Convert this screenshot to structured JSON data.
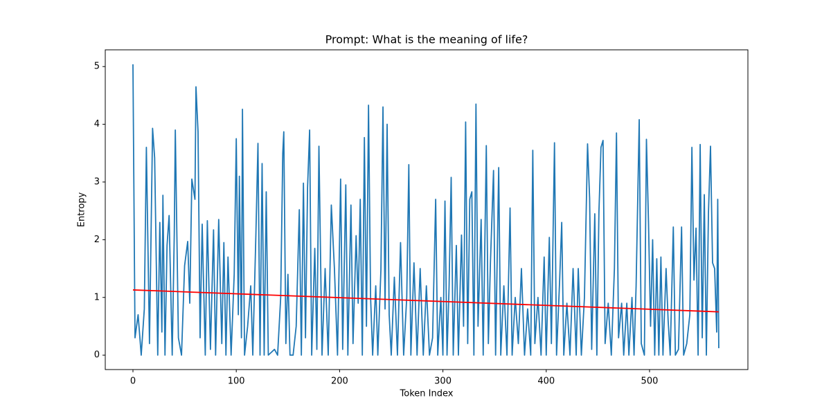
{
  "chart_data": {
    "type": "line",
    "title": "Prompt: What is the meaning of life?",
    "x_label": "Token Index",
    "y_label": "Entropy",
    "xlim": [
      -26.8,
      595.2
    ],
    "ylim": [
      -0.25,
      5.29
    ],
    "xticks": [
      0,
      100,
      200,
      300,
      400,
      500
    ],
    "yticks": [
      0,
      1,
      2,
      3,
      4,
      5
    ],
    "grid": false,
    "series": [
      {
        "color": "#1f77b4",
        "x": [
          0,
          2,
          5,
          8,
          11,
          13,
          16,
          19,
          21,
          24,
          26,
          28,
          29,
          31,
          33,
          35,
          38,
          40,
          41,
          44,
          47,
          50,
          53,
          55,
          57,
          60,
          61,
          63,
          65,
          67,
          70,
          72,
          75,
          78,
          80,
          83,
          86,
          88,
          90,
          92,
          95,
          98,
          100,
          102,
          103,
          105,
          106,
          108,
          111,
          114,
          116,
          119,
          121,
          123,
          125,
          127,
          129,
          131,
          134,
          137,
          140,
          143,
          145,
          146,
          148,
          150,
          152,
          155,
          158,
          161,
          163,
          165,
          167,
          169,
          171,
          173,
          176,
          178,
          180,
          183,
          186,
          189,
          192,
          195,
          198,
          201,
          203,
          206,
          208,
          211,
          213,
          216,
          218,
          220,
          222,
          224,
          226,
          228,
          230,
          232,
          235,
          237,
          240,
          242,
          244,
          246,
          248,
          250,
          253,
          256,
          259,
          262,
          265,
          267,
          269,
          272,
          275,
          278,
          281,
          284,
          287,
          290,
          293,
          295,
          298,
          300,
          302,
          304,
          306,
          308,
          310,
          313,
          315,
          318,
          320,
          322,
          324,
          326,
          328,
          330,
          332,
          334,
          337,
          339,
          342,
          344,
          346,
          349,
          351,
          354,
          356,
          359,
          362,
          365,
          367,
          370,
          373,
          376,
          379,
          382,
          385,
          387,
          389,
          392,
          395,
          398,
          400,
          403,
          405,
          408,
          410,
          413,
          415,
          417,
          420,
          423,
          426,
          429,
          431,
          434,
          437,
          440,
          442,
          444,
          447,
          449,
          451,
          453,
          455,
          457,
          460,
          463,
          466,
          468,
          470,
          473,
          475,
          478,
          480,
          483,
          485,
          487,
          490,
          492,
          495,
          497,
          499,
          501,
          503,
          505,
          507,
          509,
          511,
          513,
          516,
          518,
          520,
          523,
          525,
          528,
          531,
          533,
          536,
          539,
          541,
          543,
          545,
          547,
          549,
          551,
          553,
          555,
          557,
          559,
          561,
          563,
          565,
          566,
          567
        ],
        "values": [
          5.04,
          0.3,
          0.7,
          0.0,
          0.8,
          3.6,
          0.2,
          3.93,
          3.42,
          0.0,
          2.3,
          0.4,
          2.77,
          0.0,
          1.9,
          2.42,
          0.0,
          2.1,
          3.9,
          0.3,
          0.0,
          1.55,
          1.97,
          0.9,
          3.05,
          2.7,
          4.65,
          3.87,
          0.3,
          2.27,
          0.0,
          2.33,
          0.1,
          2.17,
          0.0,
          2.35,
          0.2,
          1.95,
          0.0,
          1.7,
          0.0,
          1.4,
          3.75,
          0.7,
          3.1,
          0.3,
          4.26,
          0.0,
          0.5,
          1.2,
          0.0,
          2.1,
          3.67,
          0.0,
          3.32,
          0.0,
          2.83,
          0.0,
          0.05,
          0.1,
          0.0,
          1.0,
          3.5,
          3.87,
          0.2,
          1.4,
          0.0,
          0.0,
          0.5,
          2.52,
          0.0,
          2.98,
          0.3,
          2.9,
          3.9,
          0.0,
          1.85,
          0.1,
          3.62,
          0.0,
          1.5,
          0.0,
          2.6,
          1.5,
          0.0,
          3.05,
          0.1,
          2.95,
          0.0,
          2.6,
          0.2,
          2.07,
          0.9,
          2.7,
          0.0,
          3.77,
          0.5,
          4.33,
          1.0,
          0.0,
          1.2,
          0.0,
          1.48,
          4.3,
          0.8,
          4.0,
          0.7,
          0.0,
          1.35,
          0.0,
          1.95,
          0.0,
          1.0,
          3.3,
          0.0,
          1.6,
          0.0,
          1.5,
          0.0,
          1.2,
          0.0,
          0.3,
          2.7,
          0.0,
          1.0,
          0.0,
          2.67,
          0.0,
          1.2,
          3.08,
          0.0,
          1.9,
          0.0,
          2.08,
          0.5,
          4.04,
          0.2,
          2.7,
          2.83,
          0.0,
          4.35,
          0.5,
          2.35,
          0.0,
          3.63,
          0.2,
          1.6,
          3.2,
          0.0,
          3.25,
          0.0,
          1.2,
          0.0,
          2.55,
          0.0,
          1.0,
          0.2,
          1.5,
          0.0,
          0.8,
          0.0,
          3.55,
          0.2,
          1.0,
          0.0,
          1.7,
          0.0,
          2.04,
          0.2,
          3.68,
          0.0,
          1.3,
          2.3,
          0.0,
          0.9,
          0.0,
          1.5,
          0.0,
          1.5,
          0.0,
          1.0,
          3.66,
          2.72,
          0.1,
          2.45,
          0.0,
          2.47,
          3.6,
          3.72,
          0.2,
          0.9,
          0.0,
          1.5,
          3.85,
          0.3,
          0.9,
          0.0,
          0.9,
          0.0,
          1.0,
          0.0,
          1.2,
          4.08,
          0.2,
          0.0,
          3.74,
          2.3,
          0.5,
          2.0,
          0.0,
          1.67,
          0.0,
          1.7,
          0.0,
          1.5,
          0.6,
          0.0,
          2.22,
          0.0,
          0.1,
          2.22,
          0.0,
          0.2,
          0.7,
          3.6,
          1.3,
          2.2,
          0.0,
          3.65,
          0.3,
          2.78,
          0.0,
          2.45,
          3.62,
          1.6,
          1.5,
          0.4,
          2.7,
          0.12
        ]
      },
      {
        "color": "red",
        "x": [
          0,
          567
        ],
        "values": [
          1.13,
          0.75
        ]
      }
    ]
  }
}
